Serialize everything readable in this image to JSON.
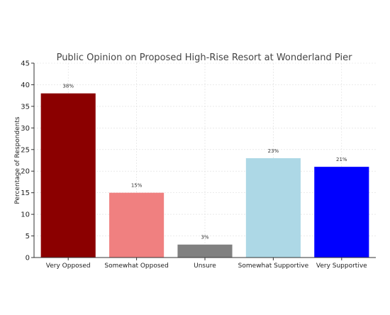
{
  "chart_data": {
    "type": "bar",
    "title": "Public Opinion on Proposed High-Rise Resort at Wonderland Pier",
    "xlabel": "",
    "ylabel": "Percentage of Respondents",
    "categories": [
      "Very Opposed",
      "Somewhat Opposed",
      "Unsure",
      "Somewhat Supportive",
      "Very Supportive"
    ],
    "values": [
      38,
      15,
      3,
      23,
      21
    ],
    "value_labels": [
      "38%",
      "15%",
      "3%",
      "23%",
      "21%"
    ],
    "colors": [
      "#8b0000",
      "#f08080",
      "#808080",
      "#add8e6",
      "#0000ff"
    ],
    "ylim": [
      0,
      45
    ],
    "yticks": [
      0,
      5,
      10,
      15,
      20,
      25,
      30,
      35,
      40,
      45
    ],
    "grid": true
  }
}
